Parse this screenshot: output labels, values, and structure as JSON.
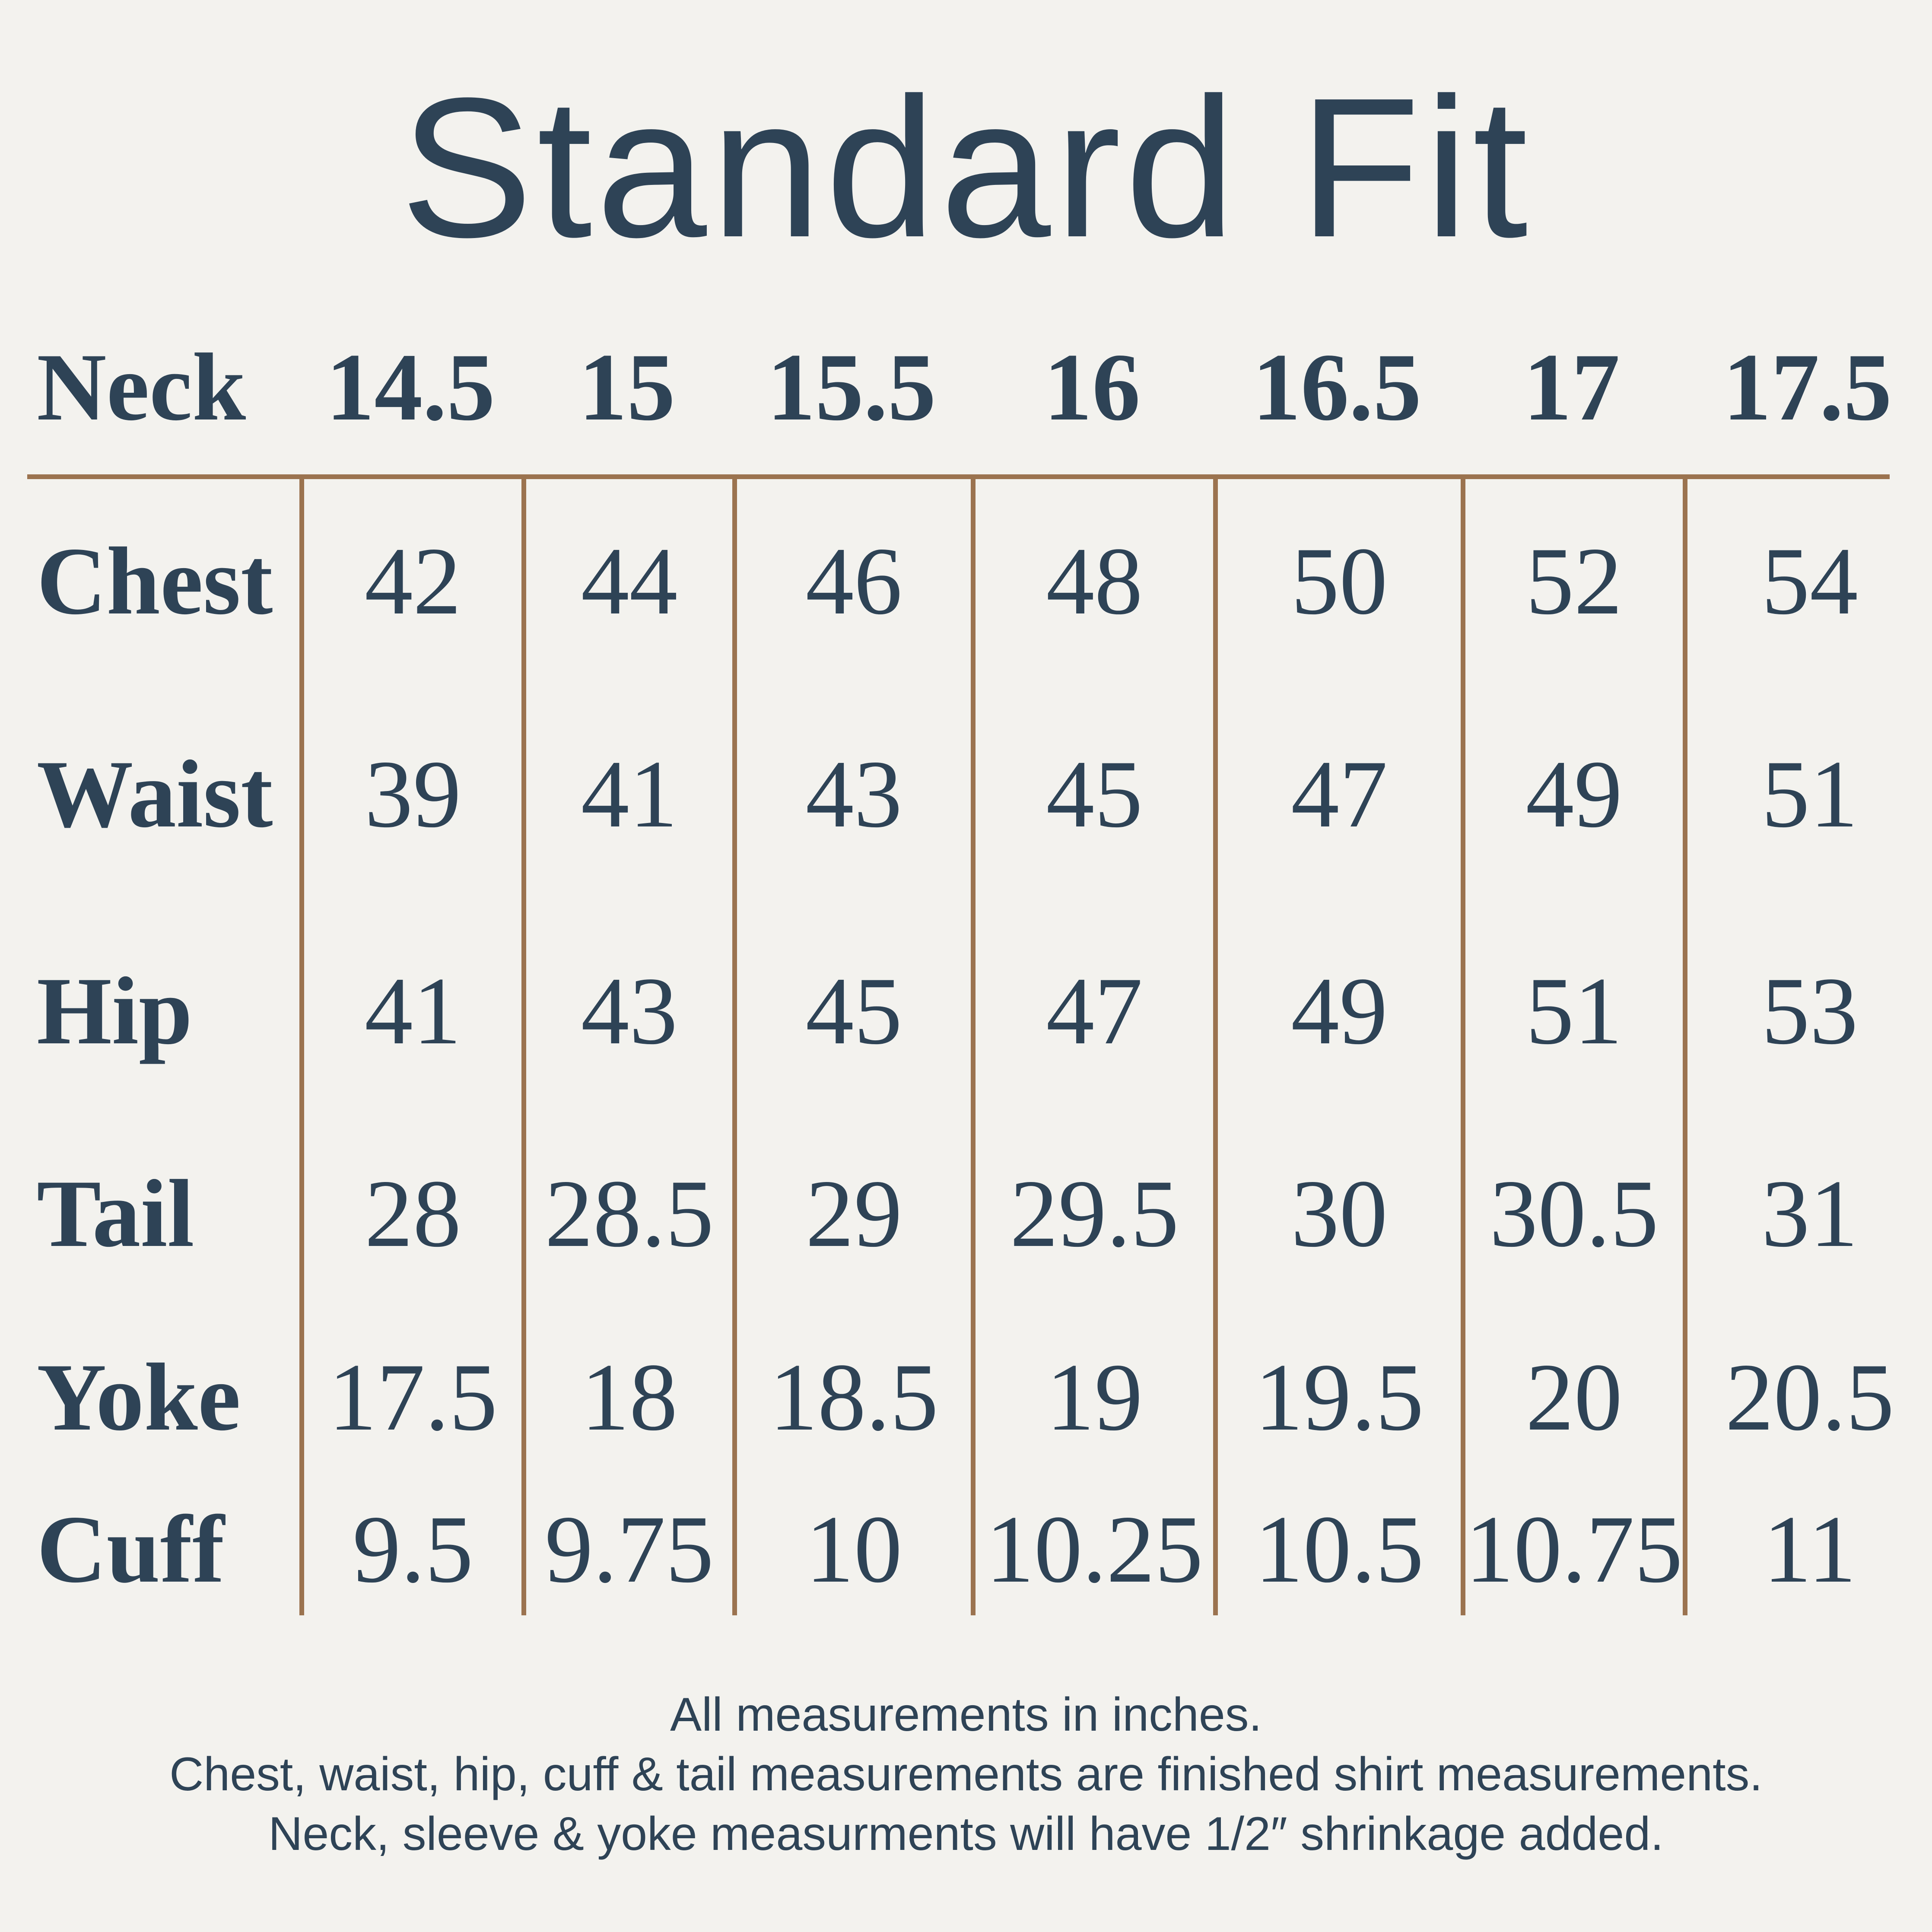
{
  "title": "Standard Fit",
  "colors": {
    "background": "#f3f2ee",
    "text_navy": "#2e4356",
    "line_brown": "#9b734f"
  },
  "table": {
    "header": {
      "label": "Neck",
      "sizes": [
        "14.5",
        "15",
        "15.5",
        "16",
        "16.5",
        "17",
        "17.5"
      ]
    },
    "rows": [
      {
        "label": "Chest",
        "values": [
          "42",
          "44",
          "46",
          "48",
          "50",
          "52",
          "54"
        ]
      },
      {
        "label": "Waist",
        "values": [
          "39",
          "41",
          "43",
          "45",
          "47",
          "49",
          "51"
        ]
      },
      {
        "label": "Hip",
        "values": [
          "41",
          "43",
          "45",
          "47",
          "49",
          "51",
          "53"
        ]
      },
      {
        "label": "Tail",
        "values": [
          "28",
          "28.5",
          "29",
          "29.5",
          "30",
          "30.5",
          "31"
        ]
      },
      {
        "label": "Yoke",
        "values": [
          "17.5",
          "18",
          "18.5",
          "19",
          "19.5",
          "20",
          "20.5"
        ]
      },
      {
        "label": "Cuff",
        "values": [
          "9.5",
          "9.75",
          "10",
          "10.25",
          "10.5",
          "10.75",
          "11"
        ]
      }
    ]
  },
  "footer": {
    "line1": "All measurements in inches.",
    "line2": "Chest, waist, hip, cuff & tail measurements are finished shirt measurements.",
    "line3": "Neck, sleeve & yoke measurments will have 1/2″ shrinkage added."
  },
  "chart_data": {
    "type": "table",
    "title": "Standard Fit",
    "columns": [
      "Neck",
      "14.5",
      "15",
      "15.5",
      "16",
      "16.5",
      "17",
      "17.5"
    ],
    "rows": [
      [
        "Chest",
        42,
        44,
        46,
        48,
        50,
        52,
        54
      ],
      [
        "Waist",
        39,
        41,
        43,
        45,
        47,
        49,
        51
      ],
      [
        "Hip",
        41,
        43,
        45,
        47,
        49,
        51,
        53
      ],
      [
        "Tail",
        28,
        28.5,
        29,
        29.5,
        30,
        30.5,
        31
      ],
      [
        "Yoke",
        17.5,
        18,
        18.5,
        19,
        19.5,
        20,
        20.5
      ],
      [
        "Cuff",
        9.5,
        9.75,
        10,
        10.25,
        10.5,
        10.75,
        11
      ]
    ],
    "notes": [
      "All measurements in inches.",
      "Chest, waist, hip, cuff & tail measurements are finished shirt measurements.",
      "Neck, sleeve & yoke measurments will have 1/2″ shrinkage added."
    ],
    "layout": "size chart table; brown top rule and brown vertical column separators; no horizontal row lines"
  }
}
